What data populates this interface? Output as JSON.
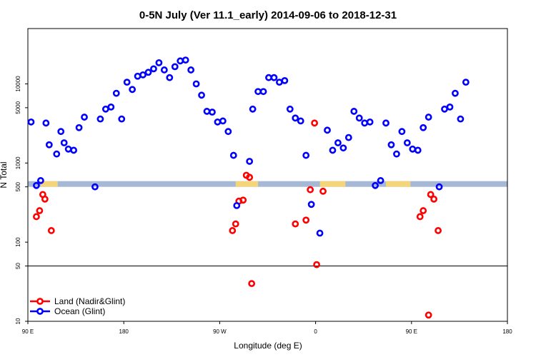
{
  "chart_data": {
    "type": "scatter",
    "title": "0-5N July (Ver 11.1_early)   2014-09-06 to 2018-12-31",
    "xlabel": "Longitude (deg E)",
    "ylabel": "N Total",
    "y_scale": "log",
    "ylim": [
      10,
      50000
    ],
    "x_ticks": [
      {
        "value": 90,
        "label": "90 E"
      },
      {
        "value": 180,
        "label": "180"
      },
      {
        "value": 270,
        "label": "90 W"
      },
      {
        "value": 360,
        "label": "0"
      },
      {
        "value": 450,
        "label": "90 E"
      },
      {
        "value": 540,
        "label": "180"
      }
    ],
    "y_ticks": [
      {
        "value": 10,
        "label": "10"
      },
      {
        "value": 50,
        "label": "50"
      },
      {
        "value": 100,
        "label": "100"
      },
      {
        "value": 500,
        "label": "500"
      },
      {
        "value": 1000,
        "label": "1000"
      },
      {
        "value": 5000,
        "label": "5000"
      },
      {
        "value": 10000,
        "label": "10000"
      }
    ],
    "reference_line_y": 50,
    "legend_position": "bottom-left",
    "series": [
      {
        "name": "Land (Nadir&Glint)",
        "color": "#ff0000",
        "points": [
          [
            98,
            210
          ],
          [
            101,
            250
          ],
          [
            104,
            400
          ],
          [
            106,
            350
          ],
          [
            112,
            140
          ],
          [
            282,
            140
          ],
          [
            285,
            170
          ],
          [
            288,
            330
          ],
          [
            292,
            340
          ],
          [
            295,
            700
          ],
          [
            298,
            660
          ],
          [
            300,
            30
          ],
          [
            341,
            170
          ],
          [
            351,
            190
          ],
          [
            355,
            460
          ],
          [
            359,
            3200
          ],
          [
            361,
            52
          ],
          [
            367,
            440
          ],
          [
            458,
            210
          ],
          [
            461,
            250
          ],
          [
            466,
            12
          ],
          [
            468,
            400
          ],
          [
            471,
            350
          ],
          [
            475,
            140
          ]
        ]
      },
      {
        "name": "Ocean (Glint)",
        "color": "#0000ff",
        "points": [
          [
            93,
            3300
          ],
          [
            98,
            520
          ],
          [
            102,
            600
          ],
          [
            107,
            3200
          ],
          [
            110,
            1700
          ],
          [
            117,
            1300
          ],
          [
            121,
            2500
          ],
          [
            124,
            1800
          ],
          [
            128,
            1500
          ],
          [
            133,
            1450
          ],
          [
            138,
            2800
          ],
          [
            143,
            3800
          ],
          [
            153,
            500
          ],
          [
            158,
            3600
          ],
          [
            163,
            4800
          ],
          [
            168,
            5100
          ],
          [
            173,
            7600
          ],
          [
            178,
            3600
          ],
          [
            183,
            10500
          ],
          [
            188,
            8500
          ],
          [
            193,
            12500
          ],
          [
            198,
            13000
          ],
          [
            203,
            14000
          ],
          [
            208,
            15500
          ],
          [
            213,
            18500
          ],
          [
            218,
            15000
          ],
          [
            223,
            12000
          ],
          [
            228,
            16500
          ],
          [
            233,
            19500
          ],
          [
            238,
            20000
          ],
          [
            243,
            15000
          ],
          [
            248,
            10000
          ],
          [
            253,
            7200
          ],
          [
            258,
            4500
          ],
          [
            263,
            4400
          ],
          [
            268,
            3300
          ],
          [
            273,
            3400
          ],
          [
            278,
            2500
          ],
          [
            283,
            1250
          ],
          [
            286,
            290
          ],
          [
            298,
            1050
          ],
          [
            301,
            4800
          ],
          [
            306,
            8000
          ],
          [
            311,
            8000
          ],
          [
            316,
            12000
          ],
          [
            321,
            12000
          ],
          [
            326,
            10500
          ],
          [
            331,
            11000
          ],
          [
            336,
            4800
          ],
          [
            341,
            3700
          ],
          [
            346,
            3400
          ],
          [
            351,
            1250
          ],
          [
            356,
            300
          ],
          [
            364,
            130
          ],
          [
            371,
            2600
          ],
          [
            376,
            1450
          ],
          [
            381,
            1800
          ],
          [
            386,
            1550
          ],
          [
            391,
            2100
          ],
          [
            396,
            4500
          ],
          [
            401,
            3700
          ],
          [
            406,
            3200
          ],
          [
            411,
            3300
          ],
          [
            416,
            520
          ],
          [
            421,
            600
          ],
          [
            426,
            3200
          ],
          [
            431,
            1700
          ],
          [
            436,
            1300
          ],
          [
            441,
            2500
          ],
          [
            446,
            1800
          ],
          [
            451,
            1500
          ],
          [
            456,
            1450
          ],
          [
            461,
            2800
          ],
          [
            466,
            3800
          ],
          [
            476,
            500
          ],
          [
            481,
            4800
          ],
          [
            486,
            5100
          ],
          [
            491,
            7600
          ],
          [
            496,
            3600
          ],
          [
            501,
            10500
          ]
        ]
      }
    ],
    "band": {
      "y_range": [
        500,
        590
      ],
      "color": "#a5b8d6",
      "highlight_color": "#f5d57a",
      "highlight_x_ranges": [
        [
          102,
          118
        ],
        [
          285,
          306
        ],
        [
          364,
          388
        ],
        [
          426,
          449
        ]
      ]
    }
  }
}
